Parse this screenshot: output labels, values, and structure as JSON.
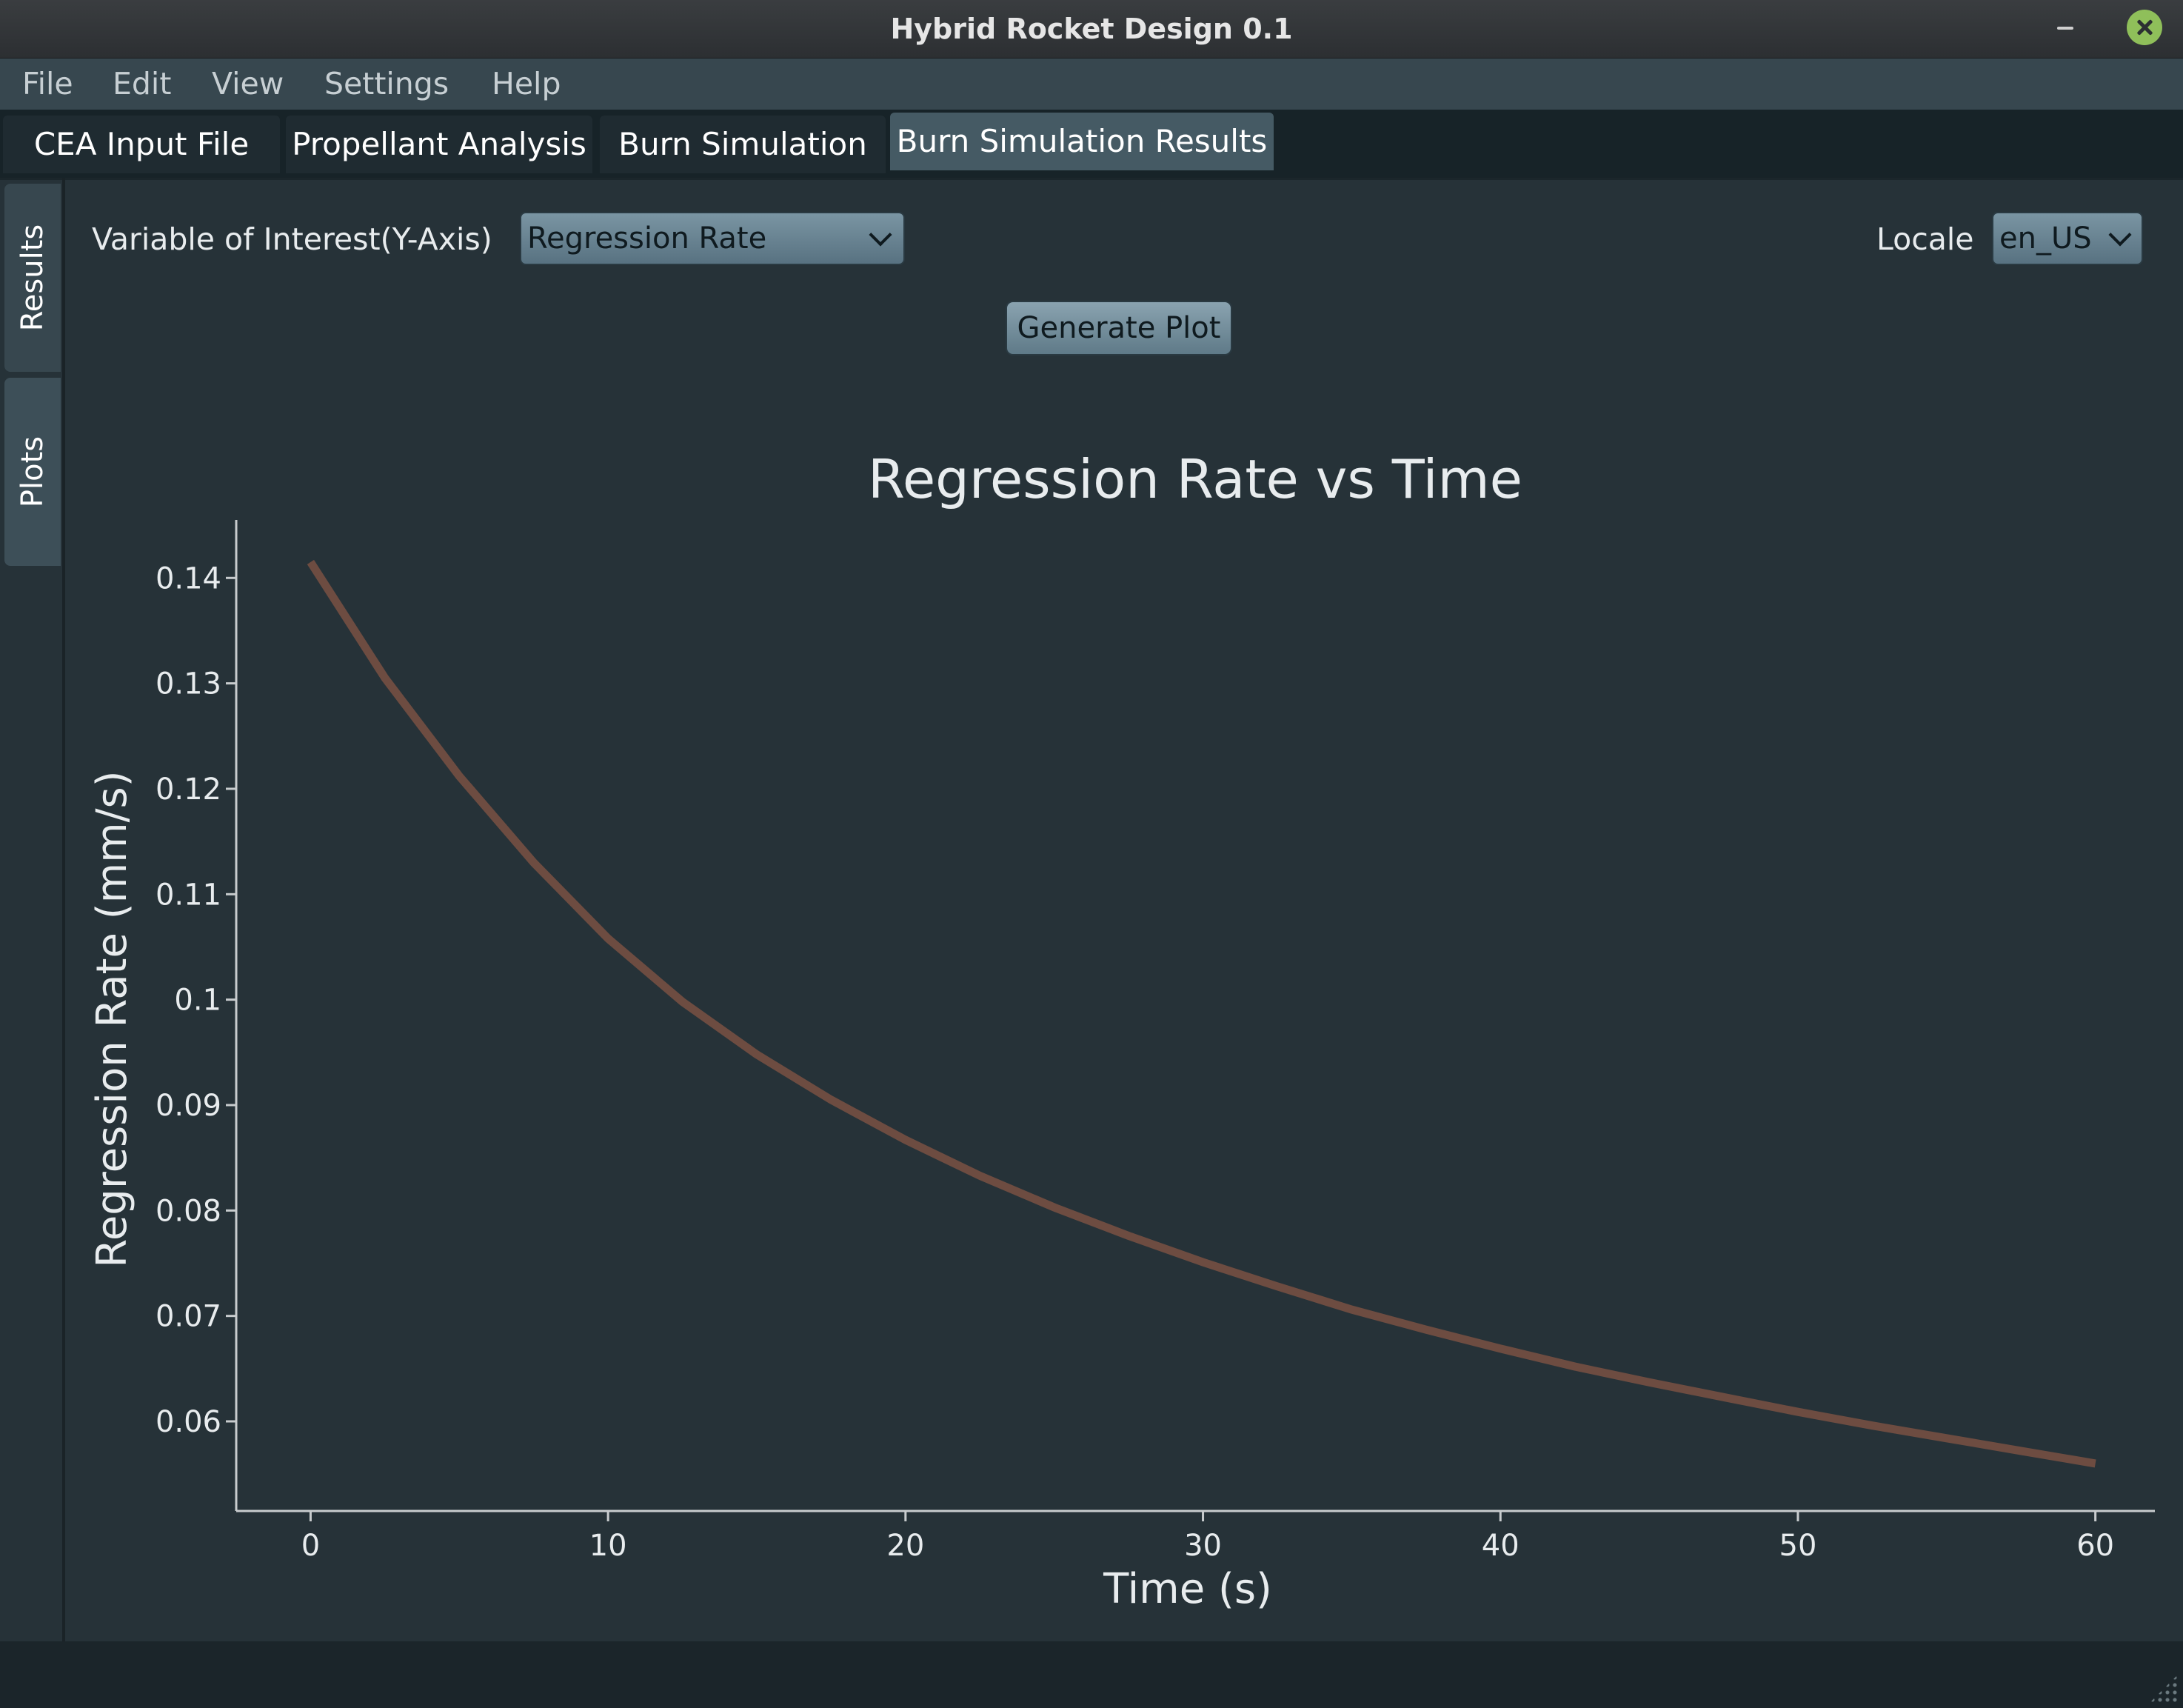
{
  "window": {
    "title": "Hybrid Rocket Design 0.1"
  },
  "menu": {
    "items": [
      "File",
      "Edit",
      "View",
      "Settings",
      "Help"
    ]
  },
  "tabs": [
    {
      "label": "CEA Input File"
    },
    {
      "label": "Propellant Analysis"
    },
    {
      "label": "Burn Simulation"
    },
    {
      "label": "Burn Simulation Results",
      "active": true
    }
  ],
  "side_tabs": [
    {
      "label": "Results"
    },
    {
      "label": "Plots",
      "active": true
    }
  ],
  "controls": {
    "variable_label": "Variable of Interest(Y-Axis)",
    "variable_value": "Regression Rate",
    "locale_label": "Locale",
    "locale_value": "en_US",
    "generate_label": "Generate Plot"
  },
  "colors": {
    "background": "#263238",
    "curve": "#6d4c41",
    "axis": "#c8ccce",
    "text": "#e8ecee"
  },
  "chart_data": {
    "type": "line",
    "title": "Regression Rate vs Time",
    "xlabel": "Time (s)",
    "ylabel": "Regression Rate (mm/s)",
    "xlim": [
      -2.5,
      62
    ],
    "ylim": [
      0.0515,
      0.1455
    ],
    "xticks": [
      0,
      10,
      20,
      30,
      40,
      50,
      60
    ],
    "xtick_labels": [
      "0",
      "10",
      "20",
      "30",
      "40",
      "50",
      "60"
    ],
    "yticks": [
      0.06,
      0.07,
      0.08,
      0.09,
      0.1,
      0.11,
      0.12,
      0.13,
      0.14
    ],
    "ytick_labels": [
      "0.06",
      "0.07",
      "0.08",
      "0.09",
      "0.1",
      "0.11",
      "0.12",
      "0.13",
      "0.14"
    ],
    "grid": false,
    "series": [
      {
        "x": [
          0,
          2.5,
          5,
          7.5,
          10,
          12.5,
          15,
          17.5,
          20,
          22.5,
          25,
          27.5,
          30,
          32.5,
          35,
          37.5,
          40,
          42.5,
          45,
          47.5,
          50,
          52.5,
          55,
          57.5,
          60
        ],
        "y": [
          0.1415,
          0.1305,
          0.1212,
          0.113,
          0.1058,
          0.0998,
          0.0948,
          0.0905,
          0.0867,
          0.0833,
          0.0803,
          0.0776,
          0.0751,
          0.0728,
          0.0706,
          0.0687,
          0.0669,
          0.0652,
          0.0637,
          0.0623,
          0.0609,
          0.0596,
          0.0584,
          0.0572,
          0.056
        ]
      }
    ]
  }
}
